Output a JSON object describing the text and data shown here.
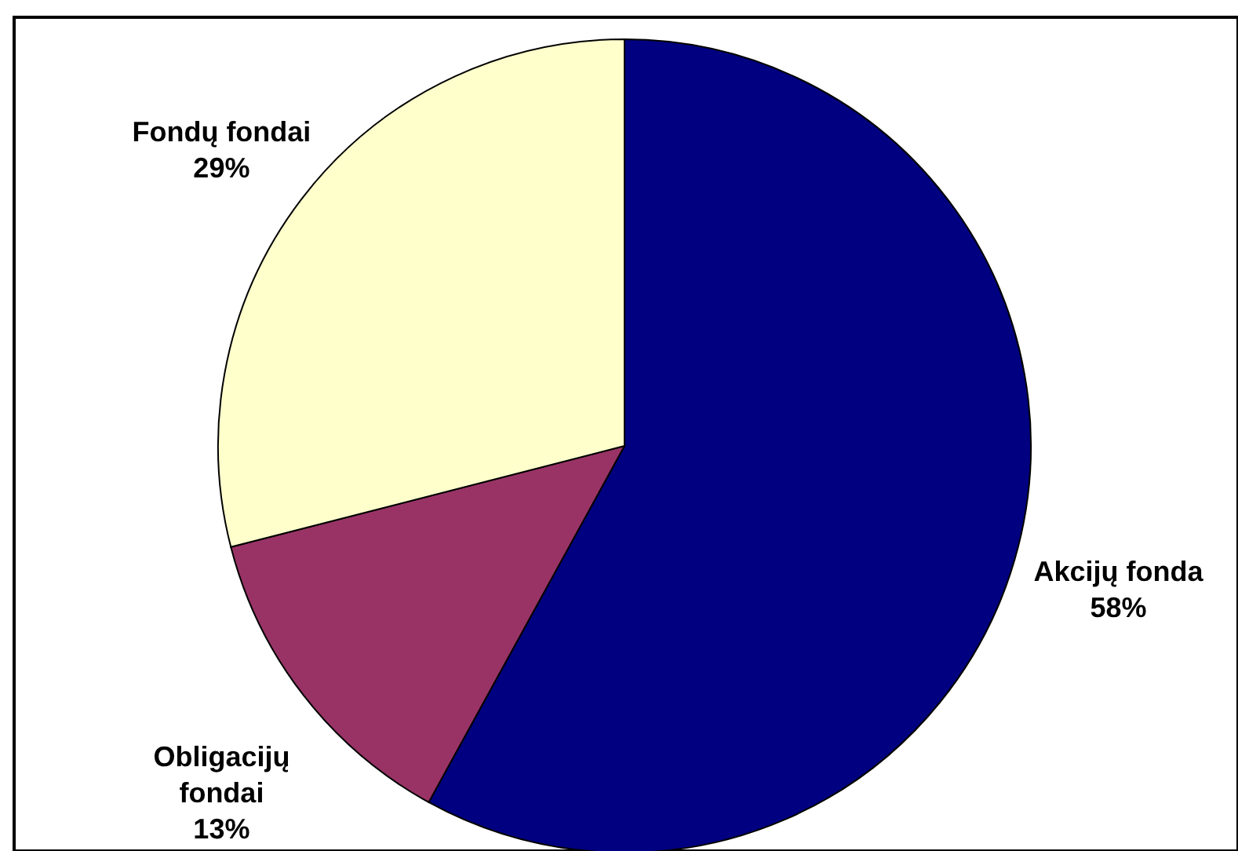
{
  "chart_data": {
    "type": "pie",
    "categories": [
      "Akcijų fonda",
      "Obligacijų fondai",
      "Fondų fondai"
    ],
    "values": [
      58,
      13,
      29
    ],
    "colors": [
      "#000080",
      "#993366",
      "#ffffcc"
    ],
    "value_labels": [
      "58%",
      "13%",
      "29%"
    ]
  }
}
